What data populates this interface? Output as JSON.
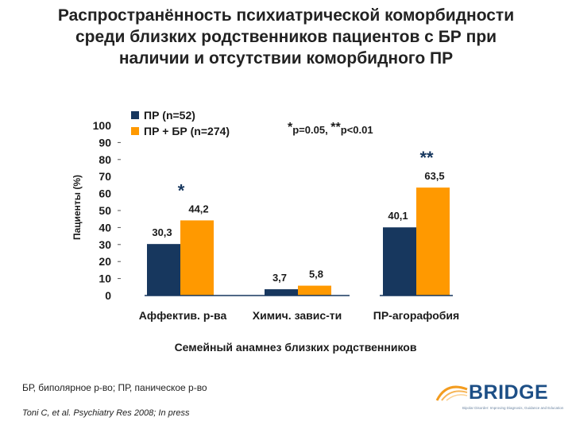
{
  "title_lines": [
    "Распространённость психиатрической коморбидности",
    "среди близких родственников пациентов с БР при",
    "наличии и отсутствии коморбидного ПР"
  ],
  "footnote": "БР, биполярное р-во; ПР, паническое р-во",
  "citation": "Toni C, et al. Psychiatry Res 2008; In press",
  "logo": {
    "text": "BRIDGE",
    "tagline": "Bipolar Disorder: Improving Diagnosis, Guidance and Education"
  },
  "chart_data": {
    "type": "bar",
    "ylabel": "Пациенты (%)",
    "xlabel": "Семейный анамнез близких родственников",
    "ylim": [
      0,
      100
    ],
    "yticks": [
      0,
      10,
      20,
      30,
      40,
      50,
      60,
      70,
      80,
      90,
      100
    ],
    "categories": [
      "Аффектив. р-ва",
      "Химич. завис-ти",
      "ПР-агорафобия"
    ],
    "series": [
      {
        "name": "ПР (n=52)",
        "color": "#17375e",
        "values": [
          30.3,
          3.7,
          40.1
        ],
        "labels": [
          "30,3",
          "3,7",
          "40,1"
        ]
      },
      {
        "name": "ПР + БР (n=274)",
        "color": "#ff9900",
        "values": [
          44.2,
          5.8,
          63.5
        ],
        "labels": [
          "44,2",
          "5,8",
          "63,5"
        ]
      }
    ],
    "significance": [
      "*",
      "",
      "**"
    ],
    "significance_note_parts": [
      "*",
      "p=0.05, ",
      "**",
      "p<0.01"
    ],
    "legend_position": "top-left",
    "grid": false
  }
}
